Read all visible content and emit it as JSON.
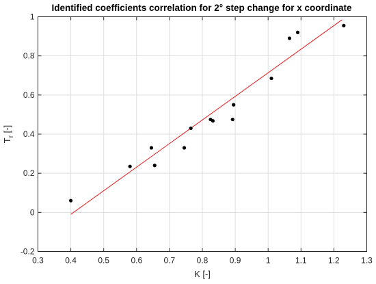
{
  "chart_data": {
    "type": "scatter",
    "title": "Identified coefficients correlation for 2° step change for x coordinate",
    "xlabel": "K [-]",
    "ylabel_main": "T",
    "ylabel_sub": "r",
    "ylabel_suffix": " [-]",
    "xlim": [
      0.3,
      1.3
    ],
    "ylim": [
      -0.2,
      1.0
    ],
    "xticks": [
      "0.3",
      "0.4",
      "0.5",
      "0.6",
      "0.7",
      "0.8",
      "0.9",
      "1",
      "1.1",
      "1.2",
      "1.3"
    ],
    "yticks": [
      "-0.2",
      "0",
      "0.2",
      "0.4",
      "0.6",
      "0.8",
      "1"
    ],
    "grid": true,
    "points": [
      {
        "x": 0.4,
        "y": 0.06
      },
      {
        "x": 0.58,
        "y": 0.235
      },
      {
        "x": 0.645,
        "y": 0.33
      },
      {
        "x": 0.655,
        "y": 0.24
      },
      {
        "x": 0.745,
        "y": 0.33
      },
      {
        "x": 0.765,
        "y": 0.43
      },
      {
        "x": 0.825,
        "y": 0.475
      },
      {
        "x": 0.832,
        "y": 0.468
      },
      {
        "x": 0.892,
        "y": 0.475
      },
      {
        "x": 0.895,
        "y": 0.55
      },
      {
        "x": 1.01,
        "y": 0.685
      },
      {
        "x": 1.065,
        "y": 0.89
      },
      {
        "x": 1.09,
        "y": 0.92
      },
      {
        "x": 1.23,
        "y": 0.955
      }
    ],
    "fit_line": {
      "x": [
        0.4,
        1.225
      ],
      "y": [
        -0.01,
        0.985
      ]
    },
    "colors": {
      "points": "#000000",
      "fit_line": "#e41a1c"
    }
  }
}
